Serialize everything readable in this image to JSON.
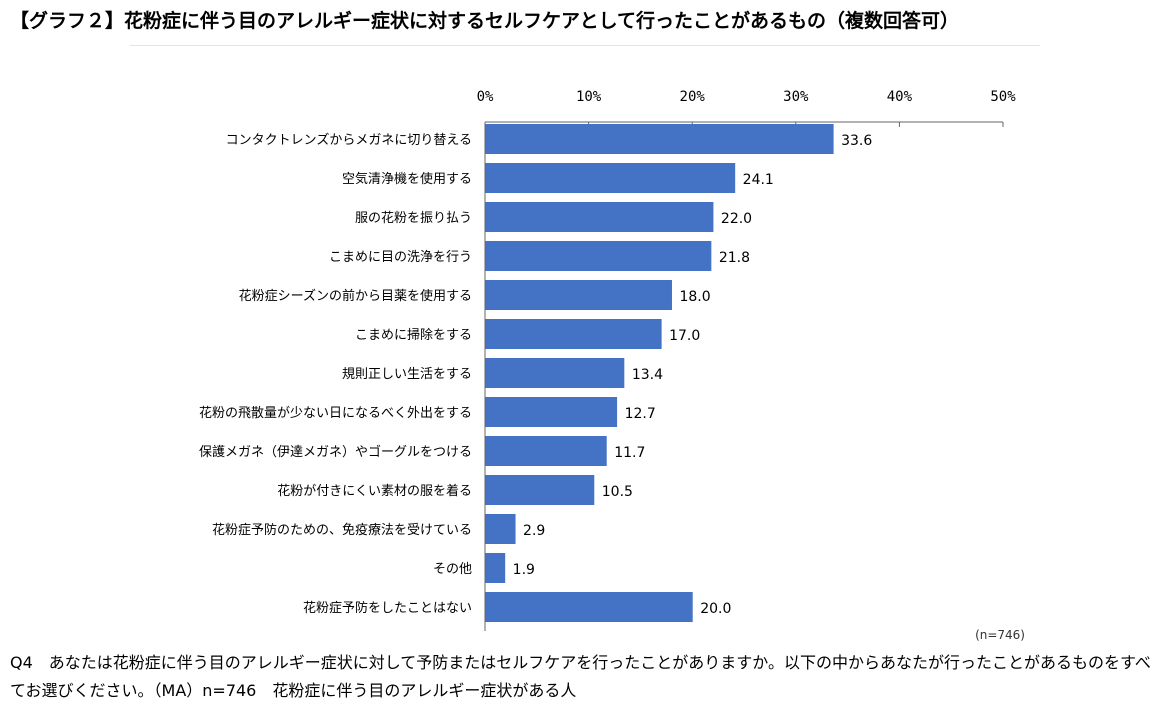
{
  "title": "【グラフ２】花粉症に伴う目のアレルギー症状に対するセルフケアとして行ったことがあるもの（複数回答可）",
  "sample_note": "(n=746)",
  "question": "Q4　あなたは花粉症に伴う目のアレルギー症状に対して予防またはセルフケアを行ったことがありますか。以下の中からあなたが行ったことがあるものをすべてお選びください。（MA）n=746　花粉症に伴う目のアレルギー症状がある人",
  "colors": {
    "bar": "#4472C4",
    "axis": "#666666",
    "grid": "#d9d9d9"
  },
  "chart_data": {
    "type": "bar",
    "orientation": "horizontal",
    "categories": [
      "コンタクトレンズからメガネに切り替える",
      "空気清浄機を使用する",
      "服の花粉を振り払う",
      "こまめに目の洗浄を行う",
      "花粉症シーズンの前から目薬を使用する",
      "こまめに掃除をする",
      "規則正しい生活をする",
      "花粉の飛散量が少ない日になるべく外出をする",
      "保護メガネ（伊達メガネ）やゴーグルをつける",
      "花粉が付きにくい素材の服を着る",
      "花粉症予防のための、免疫療法を受けている",
      "その他",
      "花粉症予防をしたことはない"
    ],
    "values": [
      33.6,
      24.1,
      22.0,
      21.8,
      18.0,
      17.0,
      13.4,
      12.7,
      11.7,
      10.5,
      2.9,
      1.9,
      20.0
    ],
    "value_labels": [
      "33.6",
      "24.1",
      "22.0",
      "21.8",
      "18.0",
      "17.0",
      "13.4",
      "12.7",
      "11.7",
      "10.5",
      "2.9",
      "1.9",
      "20.0"
    ],
    "x_ticks": [
      "0%",
      "10%",
      "20%",
      "30%",
      "40%",
      "50%"
    ],
    "xlim": [
      0,
      50
    ],
    "axis_position": "top",
    "grid": false,
    "legend": "none"
  }
}
